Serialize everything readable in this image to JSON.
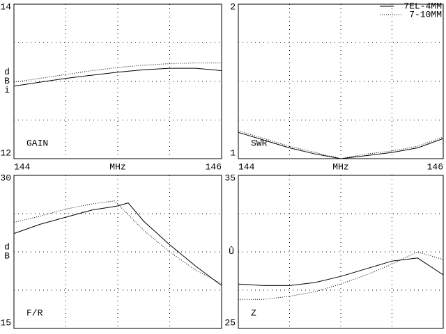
{
  "chart_data": [
    {
      "type": "line",
      "title": "GAIN",
      "ylabel": "dBi",
      "xlabel": "MHz",
      "xlim": [
        144,
        146
      ],
      "xticks": [
        144,
        146
      ],
      "xgrid": [
        144.5,
        145,
        145.5
      ],
      "ylim": [
        12,
        14
      ],
      "yticks": [
        12,
        14
      ],
      "ygrid": [
        12.5,
        13,
        13.5
      ],
      "series": [
        {
          "style": "solid",
          "color": "#000000",
          "x": [
            144,
            144.25,
            144.5,
            144.75,
            145,
            145.25,
            145.5,
            145.75,
            146
          ],
          "values": [
            12.94,
            12.99,
            13.04,
            13.08,
            13.12,
            13.15,
            13.17,
            13.17,
            13.14
          ]
        },
        {
          "style": "dotted",
          "color": "#000000",
          "x": [
            144,
            144.25,
            144.5,
            144.75,
            145,
            145.25,
            145.5,
            145.75,
            146
          ],
          "values": [
            12.99,
            13.04,
            13.09,
            13.14,
            13.18,
            13.21,
            13.23,
            13.24,
            13.24
          ]
        }
      ]
    },
    {
      "type": "line",
      "title": "SWR",
      "xlabel": "MHz",
      "legend": "top-right",
      "xlim": [
        144,
        146
      ],
      "xticks": [
        144,
        146
      ],
      "xgrid": [
        144.5,
        145,
        145.5
      ],
      "ylim": [
        1,
        2
      ],
      "yticks": [
        1,
        2
      ],
      "ygrid": [
        1.25,
        1.5,
        1.75
      ],
      "series": [
        {
          "name": "7EL-4MM",
          "style": "solid",
          "color": "#000000",
          "x": [
            144,
            144.25,
            144.5,
            144.75,
            145,
            145.25,
            145.5,
            145.75,
            146
          ],
          "values": [
            1.17,
            1.12,
            1.07,
            1.03,
            1.0,
            1.02,
            1.04,
            1.07,
            1.13
          ]
        },
        {
          "name": "7-10MM",
          "style": "dotted",
          "color": "#000000",
          "x": [
            144,
            144.25,
            144.5,
            144.75,
            145,
            145.25,
            145.5,
            145.75,
            146
          ],
          "values": [
            1.18,
            1.13,
            1.08,
            1.04,
            1.0,
            1.03,
            1.05,
            1.08,
            1.14
          ]
        }
      ]
    },
    {
      "type": "line",
      "title": "F/R",
      "ylabel": "dB",
      "xlim": [
        144,
        146
      ],
      "xgrid": [
        144.5,
        145,
        145.5
      ],
      "ylim": [
        15,
        30
      ],
      "yticks": [
        15,
        30
      ],
      "ygrid": [
        18.75,
        22.5,
        26.25
      ],
      "series": [
        {
          "style": "solid",
          "color": "#000000",
          "x": [
            144,
            144.25,
            144.5,
            144.75,
            145,
            145.1,
            145.25,
            145.5,
            145.75,
            146
          ],
          "values": [
            24.3,
            25.2,
            25.9,
            26.6,
            27.0,
            27.3,
            25.5,
            23.2,
            21.1,
            19.2
          ]
        },
        {
          "style": "dotted",
          "color": "#000000",
          "x": [
            144,
            144.25,
            144.5,
            144.75,
            144.97,
            145.25,
            145.5,
            145.75,
            146
          ],
          "values": [
            25.4,
            26.0,
            26.7,
            27.2,
            27.5,
            24.6,
            22.5,
            20.7,
            19.4
          ]
        }
      ]
    },
    {
      "type": "line",
      "title": "Z",
      "ylabel": "Û",
      "xlim": [
        144,
        146
      ],
      "xgrid": [
        144.5,
        145,
        145.5
      ],
      "ylim": [
        25,
        35
      ],
      "yticks": [
        25,
        35
      ],
      "ygrid": [
        27.5,
        30,
        32.5
      ],
      "series": [
        {
          "style": "solid",
          "color": "#000000",
          "x": [
            144,
            144.25,
            144.5,
            144.75,
            145,
            145.25,
            145.5,
            145.75,
            146
          ],
          "values": [
            27.9,
            27.8,
            27.8,
            28.0,
            28.4,
            28.9,
            29.4,
            29.6,
            28.5
          ]
        },
        {
          "style": "dotted",
          "color": "#000000",
          "x": [
            144,
            144.25,
            144.5,
            144.75,
            145,
            145.25,
            145.5,
            145.75,
            146
          ],
          "values": [
            26.9,
            26.9,
            27.1,
            27.4,
            27.9,
            28.5,
            29.2,
            30.0,
            29.5
          ]
        }
      ]
    }
  ]
}
